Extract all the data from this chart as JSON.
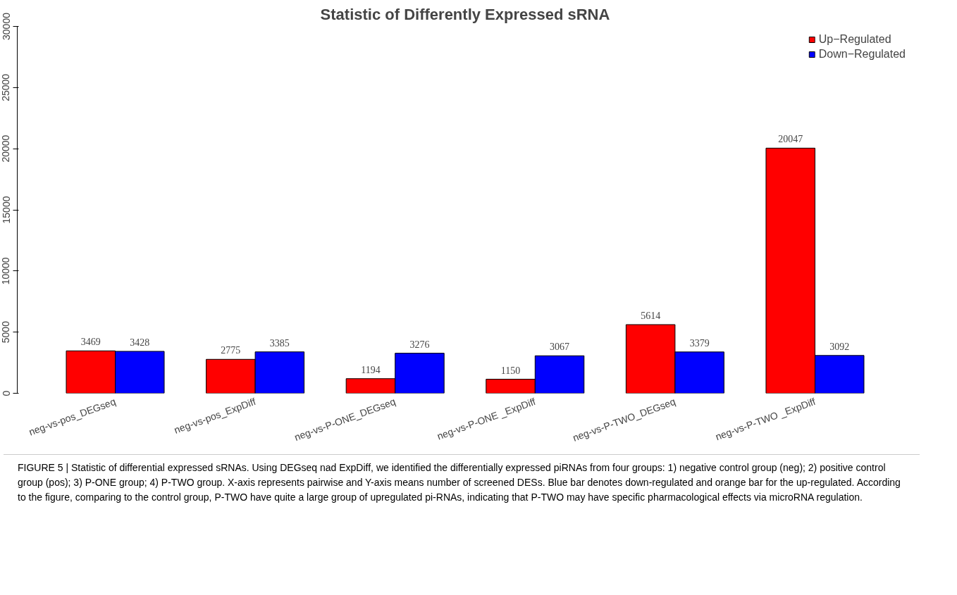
{
  "chart_data": {
    "type": "bar",
    "title": "Statistic of Differently Expressed sRNA",
    "categories": [
      "neg-vs-pos_DEGseq",
      "neg-vs-pos_ExpDiff",
      "neg-vs-P-ONE_DEGseq",
      "neg-vs-P-ONE _ExpDiff",
      "neg-vs-P-TWO_DEGseq",
      "neg-vs-P-TWO _ExpDiff"
    ],
    "series": [
      {
        "name": "Up−Regulated",
        "color": "#ff0000",
        "values": [
          3469,
          2775,
          1194,
          1150,
          5614,
          20047
        ]
      },
      {
        "name": "Down−Regulated",
        "color": "#0000ff",
        "values": [
          3428,
          3385,
          3276,
          3067,
          3379,
          3092
        ]
      }
    ],
    "ylim": [
      0,
      30000
    ],
    "yticks": [
      0,
      5000,
      10000,
      15000,
      20000,
      25000,
      30000
    ],
    "data_labels": true,
    "legend": "top right",
    "grid": false,
    "annotations": [
      "FIGURE 5 | Statistic of differential expressed sRNAs. Using DEGseq nad ExpDiff, we identified the differentially expressed piRNAs from four groups: 1) negative control group (neg); 2) positive control group (pos); 3) P-ONE group; 4) P-TWO group. X-axis represents pairwise and Y-axis means number of screened DESs. Blue bar denotes down-regulated and orange bar for the up-regulated. According to the figure, comparing to the control group, P-TWO have quite a large group of upregulated pi-RNAs, indicating that P-TWO may have specific pharmacological effects via microRNA regulation."
    ]
  }
}
